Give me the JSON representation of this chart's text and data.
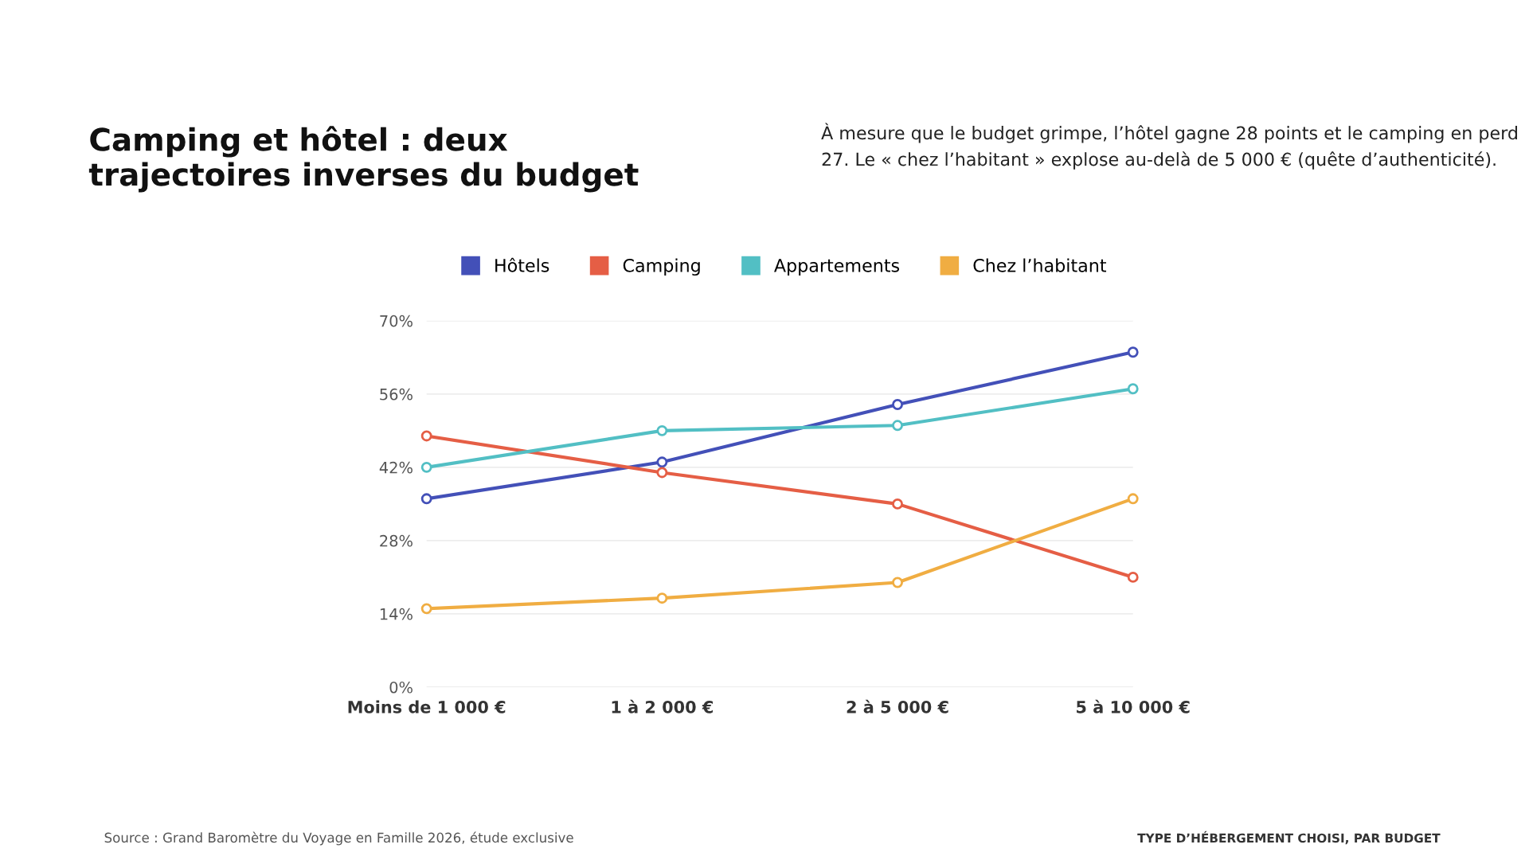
{
  "chart_data": {
    "type": "line",
    "title": "Camping et hôtel : deux\ntrajectoires inverses du budget",
    "subtitle": "À mesure que le budget grimpe, l’hôtel gagne 28 points et le camping en perd 27. Le « chez l’habitant » explose au-delà de 5 000 € (quête d’authenticité).",
    "categories": [
      "Moins de 1 000 €",
      "1 à 2 000 €",
      "2 à 5 000 €",
      "5 à 10 000 €"
    ],
    "series": [
      {
        "name": "Hôtels",
        "color": "#4350b8",
        "values": [
          36,
          43,
          54,
          64
        ]
      },
      {
        "name": "Camping",
        "color": "#e55e45",
        "values": [
          48,
          41,
          35,
          21
        ]
      },
      {
        "name": "Appartements",
        "color": "#52bfc4",
        "values": [
          42,
          49,
          50,
          57
        ]
      },
      {
        "name": "Chez l’habitant",
        "color": "#f0ad42",
        "values": [
          15,
          17,
          20,
          36
        ]
      }
    ],
    "ylim": [
      0,
      70
    ],
    "yticks": [
      {
        "value": 0,
        "label": "0%"
      },
      {
        "value": 14,
        "label": "14%"
      },
      {
        "value": 28,
        "label": "28%"
      },
      {
        "value": 42,
        "label": "42%"
      },
      {
        "value": 56,
        "label": "56%"
      },
      {
        "value": 70,
        "label": "70%"
      }
    ],
    "grid": "y",
    "legend": "top",
    "marker": "circle",
    "line_style": "solid",
    "annotations": [
      "Source : Grand Baromètre du Voyage en Famille 2026, étude exclusive",
      "TYPE D’HÉBERGEMENT CHOISI, PAR BUDGET"
    ]
  }
}
